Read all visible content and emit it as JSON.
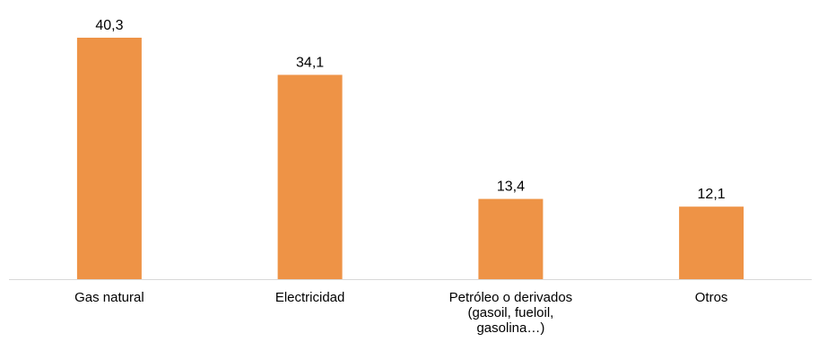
{
  "chart_data": {
    "type": "bar",
    "categories": [
      [
        "Gas natural"
      ],
      [
        "Electricidad"
      ],
      [
        "Petróleo o derivados",
        "(gasoil, fueloil,",
        "gasolina…)"
      ],
      [
        "Otros"
      ]
    ],
    "values": [
      40.3,
      34.1,
      13.4,
      12.1
    ],
    "data_labels": [
      "40,3",
      "34,1",
      "13,4",
      "12,1"
    ],
    "title": "",
    "xlabel": "",
    "ylabel": "",
    "ylim": [
      0,
      40.3
    ],
    "grid": false,
    "legend": "none",
    "bar_color": "#EE9346",
    "axis_color": "#D9D9D9"
  }
}
